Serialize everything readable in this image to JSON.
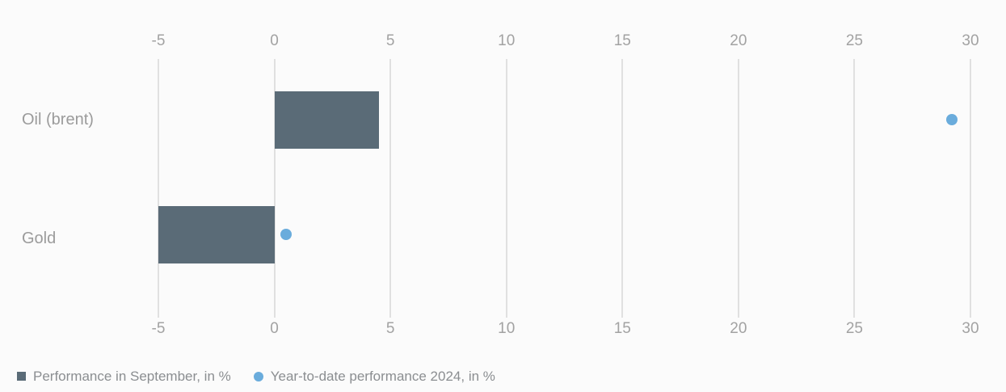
{
  "chart_data": {
    "type": "bar",
    "orientation": "horizontal",
    "title": "",
    "xlabel": "",
    "ylabel": "",
    "categories": [
      "Oil (brent)",
      "Gold"
    ],
    "series": [
      {
        "name": "Performance in September, in %",
        "type": "bar",
        "marker": "square",
        "color": "#5a6b77",
        "values": [
          4.5,
          -5.0
        ]
      },
      {
        "name": "Year-to-date performance 2024, in %",
        "type": "scatter",
        "marker": "dot",
        "color": "#6aacdc",
        "values": [
          29.2,
          0.5
        ]
      }
    ],
    "x_axis": {
      "min": -5,
      "max": 30,
      "tick_step": 5,
      "ticks": [
        -5,
        0,
        5,
        10,
        15,
        20,
        25,
        30
      ],
      "tick_labels": [
        "-5",
        "0",
        "5",
        "10",
        "15",
        "20",
        "25",
        "30"
      ],
      "position": "top-and-bottom"
    },
    "grid": "vertical-on",
    "legend_position": "bottom-left",
    "background_color": "#fbfbfb",
    "gridline_color": "#e0e0e0",
    "tick_label_color": "#a2a2a2",
    "category_label_color": "#9b9b9b",
    "legend_text_color": "#8b8e91"
  }
}
